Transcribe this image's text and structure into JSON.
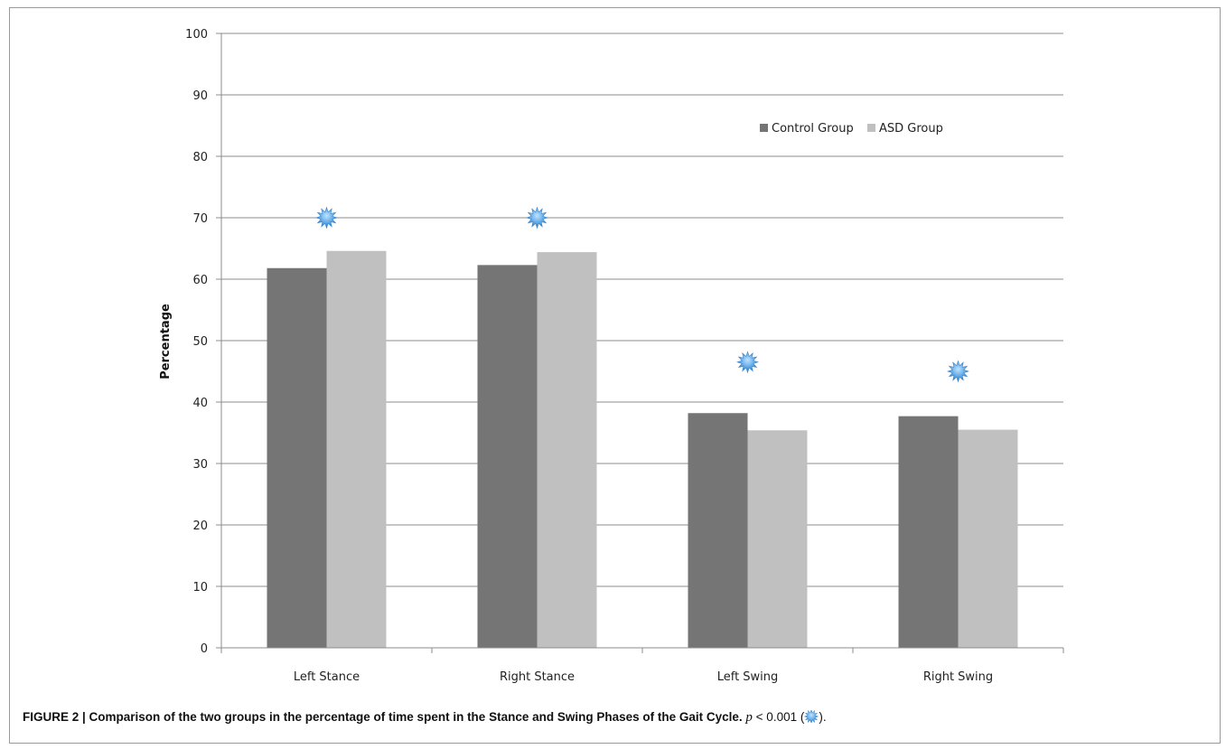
{
  "chart_data": {
    "type": "bar",
    "ylabel": "Percentage",
    "xlabel": "",
    "ylim": [
      0,
      100
    ],
    "yticks": [
      0,
      10,
      20,
      30,
      40,
      50,
      60,
      70,
      80,
      90,
      100
    ],
    "grid": true,
    "legend_position": "top-right",
    "categories": [
      "Left Stance",
      "Right Stance",
      "Left Swing",
      "Right Swing"
    ],
    "series": [
      {
        "name": "Control Group",
        "color": "#757575",
        "values": [
          61.8,
          62.3,
          38.2,
          37.7
        ]
      },
      {
        "name": "ASD Group",
        "color": "#c0c0c0",
        "values": [
          64.6,
          64.4,
          35.4,
          35.5
        ]
      }
    ],
    "significance_markers": {
      "symbol": "star-burst",
      "color": "#5aa8e6",
      "positions": [
        70,
        70,
        46.5,
        45
      ]
    }
  },
  "caption": {
    "bold": "FIGURE 2 | Comparison of the two groups in the percentage of time spent in the Stance and Swing Phases of the Gait Cycle.",
    "p_text": "p",
    "rest": " < 0.001 (",
    "close": ")."
  }
}
